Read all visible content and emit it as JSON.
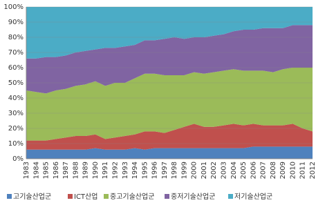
{
  "chart_data": {
    "type": "stacked_area",
    "categories": [
      "1983",
      "1984",
      "1985",
      "1986",
      "1987",
      "1988",
      "1989",
      "1990",
      "1991",
      "1992",
      "1993",
      "1994",
      "1995",
      "1996",
      "1997",
      "1998",
      "1999",
      "2000",
      "2001",
      "2002",
      "2003",
      "2004",
      "2005",
      "2006",
      "2007",
      "2008",
      "2009",
      "2010",
      "2011",
      "2012"
    ],
    "series": [
      {
        "name": "고기술산업군",
        "color": "#4f81bd",
        "values": [
          6,
          6,
          6,
          6,
          6,
          6,
          6,
          7,
          6,
          6,
          6,
          7,
          6,
          7,
          7,
          7,
          7,
          7,
          7,
          7,
          7,
          7,
          7,
          8,
          8,
          8,
          8,
          8,
          8,
          8
        ]
      },
      {
        "name": "ICT산업",
        "color": "#c0504d",
        "values": [
          6,
          6,
          6,
          7,
          8,
          9,
          9,
          9,
          7,
          8,
          9,
          9,
          12,
          11,
          10,
          12,
          14,
          16,
          14,
          14,
          15,
          16,
          15,
          15,
          14,
          14,
          14,
          15,
          12,
          10
        ]
      },
      {
        "name": "중고기술산업군",
        "color": "#9bbb59",
        "values": [
          33,
          32,
          31,
          32,
          32,
          33,
          34,
          35,
          35,
          36,
          35,
          37,
          38,
          38,
          38,
          36,
          34,
          34,
          35,
          36,
          36,
          36,
          36,
          35,
          36,
          35,
          37,
          37,
          40,
          42
        ]
      },
      {
        "name": "중저기술산업군",
        "color": "#8064a2",
        "values": [
          21,
          22,
          24,
          22,
          22,
          22,
          22,
          21,
          25,
          23,
          24,
          22,
          22,
          22,
          24,
          25,
          24,
          23,
          24,
          24,
          24,
          25,
          27,
          27,
          28,
          29,
          27,
          28,
          28,
          28
        ]
      },
      {
        "name": "저기술산업군",
        "color": "#4bacc6",
        "values": [
          34,
          34,
          33,
          33,
          32,
          30,
          29,
          28,
          27,
          27,
          26,
          25,
          22,
          22,
          21,
          20,
          21,
          20,
          20,
          19,
          18,
          16,
          15,
          15,
          14,
          14,
          14,
          12,
          12,
          12
        ]
      }
    ],
    "ylim": [
      0,
      100
    ],
    "yticks": [
      {
        "value": 0,
        "label": "0%"
      },
      {
        "value": 10,
        "label": "10%"
      },
      {
        "value": 20,
        "label": "20%"
      },
      {
        "value": 30,
        "label": "30%"
      },
      {
        "value": 40,
        "label": "40%"
      },
      {
        "value": 50,
        "label": "50%"
      },
      {
        "value": 60,
        "label": "60%"
      },
      {
        "value": 70,
        "label": "70%"
      },
      {
        "value": 80,
        "label": "80%"
      },
      {
        "value": 90,
        "label": "90%"
      },
      {
        "value": 100,
        "label": "100%"
      }
    ],
    "grid": true,
    "legend": "bottom"
  }
}
